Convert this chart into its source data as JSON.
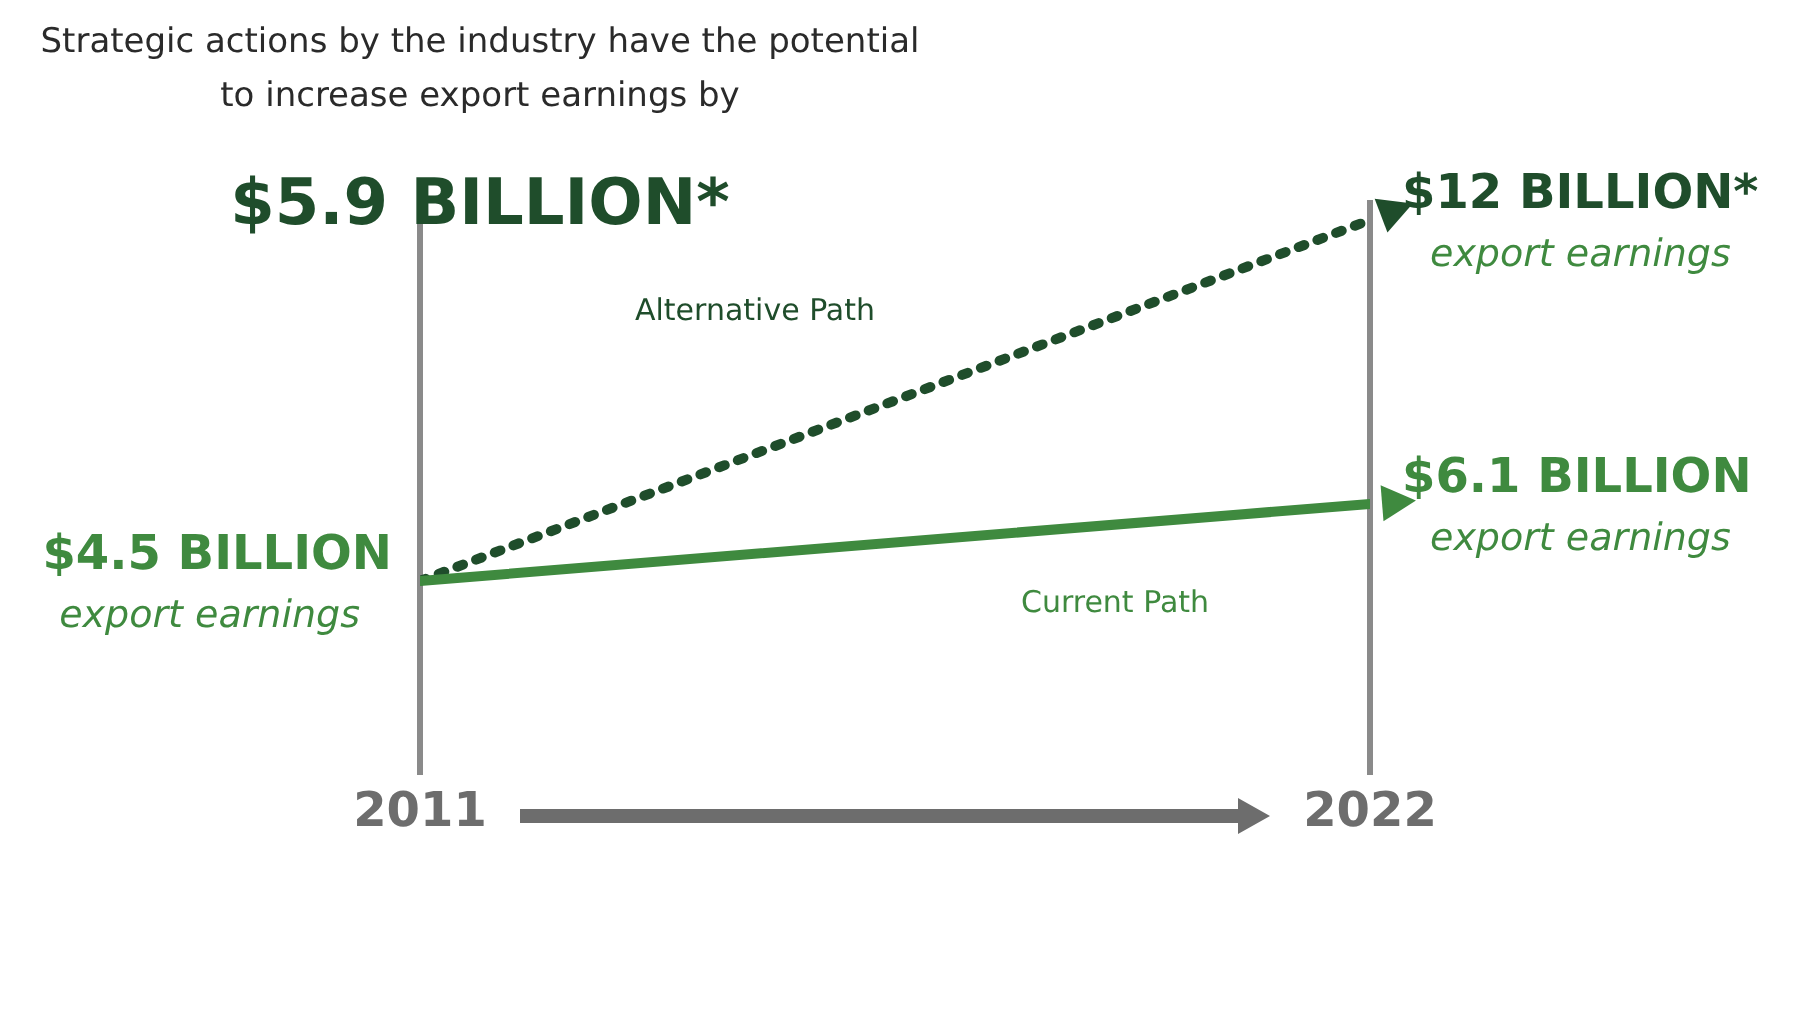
{
  "chart_data": {
    "type": "line",
    "title": "Strategic actions by the industry have the potential to increase export earnings by",
    "subtitle": "$5.9 BILLION*",
    "x": [
      2011,
      2022
    ],
    "xlim": [
      2011,
      2022
    ],
    "xticks": [
      2011,
      2022
    ],
    "tick_labels": "x",
    "legend": false,
    "series": [
      {
        "name": "Current Path",
        "color": "#3f8a3f",
        "values": [
          4.5,
          6.1
        ],
        "value_labels": [
          "$4.5 BILLION",
          "$6.1 BILLION"
        ],
        "line_style": "solid"
      },
      {
        "name": "Alternative Path",
        "color": "#1f4d2b",
        "values": [
          4.5,
          12
        ],
        "value_labels": [
          null,
          "$12 BILLION*"
        ],
        "line_style": "dotted"
      }
    ],
    "annotations": [
      "export earnings",
      "export earnings",
      "export earnings"
    ],
    "ref_lines": [
      {
        "axis": "x",
        "value": 2011,
        "color": "#8a8a8a"
      },
      {
        "axis": "x",
        "value": 2022,
        "color": "#8a8a8a"
      }
    ]
  }
}
